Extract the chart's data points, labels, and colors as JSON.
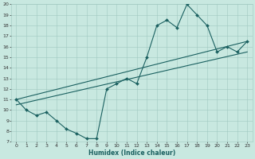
{
  "xlabel": "Humidex (Indice chaleur)",
  "xlim": [
    -0.5,
    23.5
  ],
  "ylim": [
    7,
    20
  ],
  "xticks": [
    0,
    1,
    2,
    3,
    4,
    5,
    6,
    7,
    8,
    9,
    10,
    11,
    12,
    13,
    14,
    15,
    16,
    17,
    18,
    19,
    20,
    21,
    22,
    23
  ],
  "yticks": [
    7,
    8,
    9,
    10,
    11,
    12,
    13,
    14,
    15,
    16,
    17,
    18,
    19,
    20
  ],
  "bg_color": "#c8e8e0",
  "grid_color": "#a0c8c0",
  "line_color": "#1a6060",
  "line1_x": [
    0,
    1,
    2,
    3,
    4,
    5,
    6,
    7,
    8,
    9,
    10,
    11,
    12,
    13,
    14,
    15,
    16,
    17,
    18,
    19,
    20,
    21,
    22,
    23
  ],
  "line1_y": [
    11,
    10,
    9.5,
    9.8,
    9.0,
    8.2,
    7.8,
    7.3,
    7.3,
    12.0,
    12.5,
    13.0,
    12.5,
    15.0,
    18.0,
    18.5,
    17.8,
    20.0,
    19.0,
    18.0,
    15.5,
    16.0,
    15.5,
    16.5
  ],
  "line2_x": [
    0,
    23
  ],
  "line2_y": [
    11,
    16.5
  ],
  "line3_x": [
    0,
    23
  ],
  "line3_y": [
    10.5,
    15.5
  ],
  "marker": "D",
  "markersize": 2.0,
  "linewidth": 0.8,
  "tick_fontsize": 4.5,
  "xlabel_fontsize": 5.5
}
